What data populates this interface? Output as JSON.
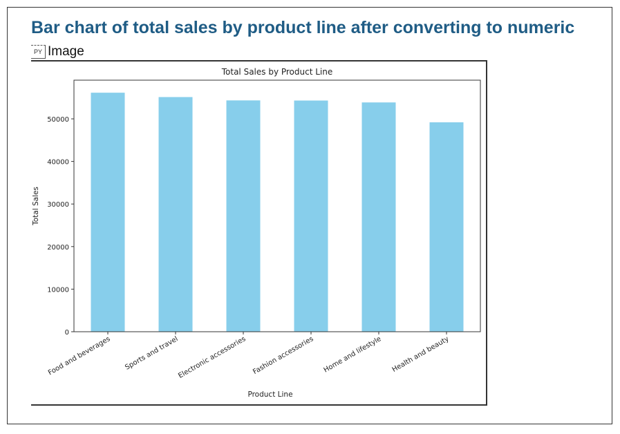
{
  "page": {
    "heading": "Bar chart of total sales by product line after converting to numeric",
    "image_label": "Image",
    "image_icon": "broken-image-icon"
  },
  "chart_data": {
    "type": "bar",
    "title": "Total Sales by Product Line",
    "xlabel": "Product Line",
    "ylabel": "Total Sales",
    "categories": [
      "Food and beverages",
      "Sports and travel",
      "Electronic accessories",
      "Fashion accessories",
      "Home and lifestyle",
      "Health and beauty"
    ],
    "values": [
      56144.84,
      55122.83,
      54337.53,
      54305.9,
      53861.91,
      49193.74
    ],
    "yticks": [
      0,
      10000,
      20000,
      30000,
      40000,
      50000
    ],
    "ylim": [
      0,
      59000
    ],
    "bar_color": "#87ceeb",
    "grid": false
  }
}
